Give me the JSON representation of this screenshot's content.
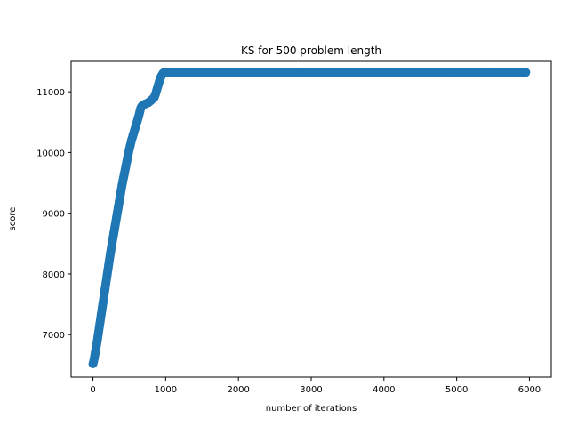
{
  "chart_data": {
    "type": "scatter",
    "title": "KS for 500 problem length",
    "xlabel": "number of iterations",
    "ylabel": "score",
    "xlim": [
      -300,
      6300
    ],
    "ylim": [
      6300,
      11500
    ],
    "xticks": [
      0,
      1000,
      2000,
      3000,
      4000,
      5000,
      6000
    ],
    "yticks": [
      7000,
      8000,
      9000,
      10000,
      11000
    ],
    "grid": false,
    "marker_color": "#1f77b4",
    "series": [
      {
        "points": [
          [
            0,
            6520
          ],
          [
            10,
            6560
          ],
          [
            20,
            6620
          ],
          [
            30,
            6690
          ],
          [
            40,
            6760
          ],
          [
            50,
            6830
          ],
          [
            60,
            6900
          ],
          [
            70,
            6980
          ],
          [
            80,
            7060
          ],
          [
            90,
            7140
          ],
          [
            100,
            7220
          ],
          [
            110,
            7300
          ],
          [
            120,
            7380
          ],
          [
            130,
            7460
          ],
          [
            140,
            7540
          ],
          [
            150,
            7620
          ],
          [
            160,
            7700
          ],
          [
            170,
            7780
          ],
          [
            180,
            7860
          ],
          [
            190,
            7940
          ],
          [
            200,
            8020
          ],
          [
            210,
            8100
          ],
          [
            220,
            8180
          ],
          [
            230,
            8260
          ],
          [
            240,
            8340
          ],
          [
            250,
            8410
          ],
          [
            260,
            8480
          ],
          [
            270,
            8550
          ],
          [
            280,
            8620
          ],
          [
            290,
            8690
          ],
          [
            300,
            8760
          ],
          [
            310,
            8830
          ],
          [
            320,
            8900
          ],
          [
            330,
            8970
          ],
          [
            340,
            9040
          ],
          [
            350,
            9110
          ],
          [
            360,
            9180
          ],
          [
            370,
            9250
          ],
          [
            380,
            9320
          ],
          [
            390,
            9390
          ],
          [
            400,
            9460
          ],
          [
            410,
            9520
          ],
          [
            420,
            9580
          ],
          [
            430,
            9640
          ],
          [
            440,
            9700
          ],
          [
            450,
            9760
          ],
          [
            460,
            9820
          ],
          [
            470,
            9880
          ],
          [
            480,
            9940
          ],
          [
            490,
            10000
          ],
          [
            500,
            10050
          ],
          [
            510,
            10100
          ],
          [
            520,
            10150
          ],
          [
            530,
            10200
          ],
          [
            540,
            10240
          ],
          [
            550,
            10280
          ],
          [
            560,
            10320
          ],
          [
            570,
            10360
          ],
          [
            580,
            10400
          ],
          [
            590,
            10440
          ],
          [
            600,
            10480
          ],
          [
            610,
            10520
          ],
          [
            620,
            10560
          ],
          [
            630,
            10600
          ],
          [
            640,
            10650
          ],
          [
            650,
            10700
          ],
          [
            660,
            10740
          ],
          [
            670,
            10760
          ],
          [
            680,
            10770
          ],
          [
            690,
            10780
          ],
          [
            700,
            10790
          ],
          [
            720,
            10800
          ],
          [
            740,
            10810
          ],
          [
            760,
            10820
          ],
          [
            780,
            10840
          ],
          [
            800,
            10860
          ],
          [
            820,
            10880
          ],
          [
            840,
            10900
          ],
          [
            860,
            10960
          ],
          [
            880,
            11040
          ],
          [
            900,
            11120
          ],
          [
            920,
            11200
          ],
          [
            940,
            11260
          ],
          [
            960,
            11300
          ],
          [
            980,
            11320
          ],
          [
            1000,
            11320
          ],
          [
            1500,
            11320
          ],
          [
            2000,
            11320
          ],
          [
            2500,
            11320
          ],
          [
            3000,
            11320
          ],
          [
            3500,
            11320
          ],
          [
            4000,
            11320
          ],
          [
            4500,
            11320
          ],
          [
            5000,
            11320
          ],
          [
            5500,
            11320
          ],
          [
            5950,
            11320
          ]
        ]
      }
    ]
  }
}
